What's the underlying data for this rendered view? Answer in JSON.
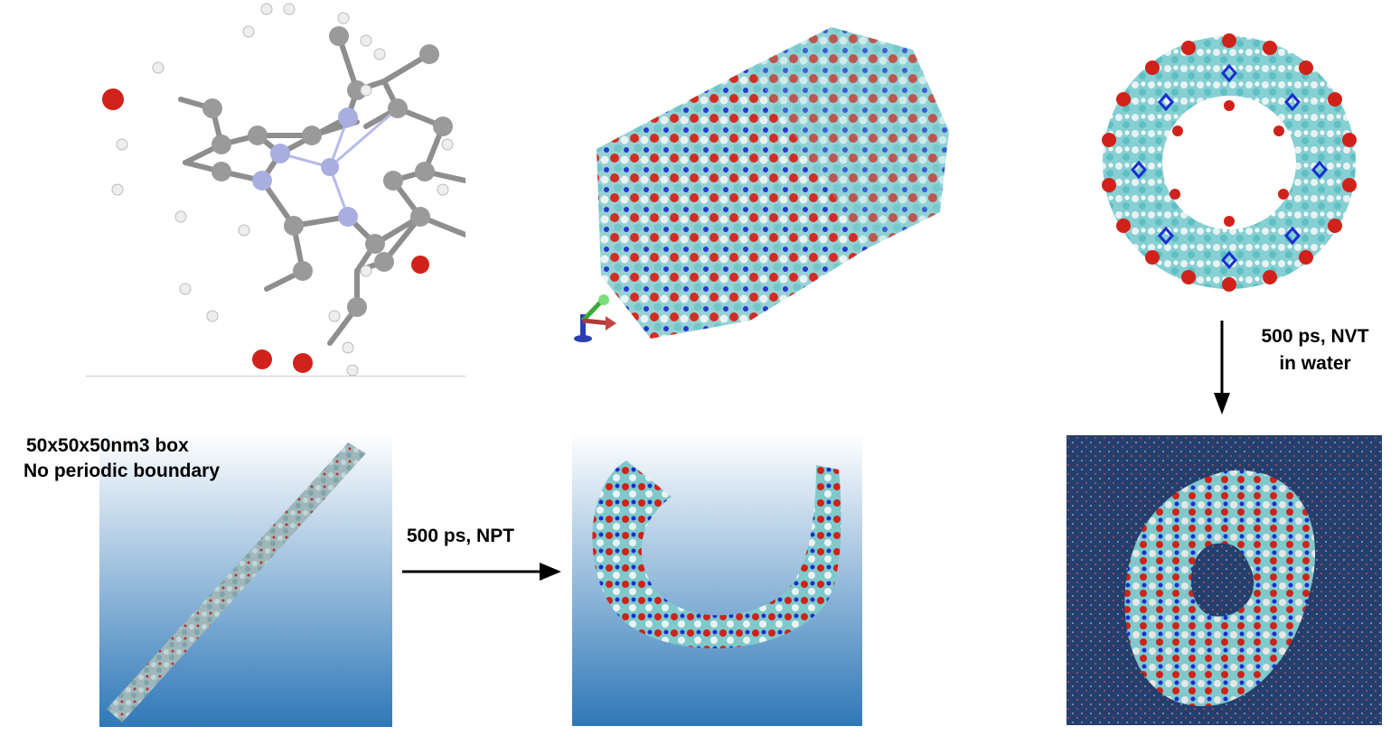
{
  "labels": {
    "box_line1": "50x50x50nm3 box",
    "box_line2": "No periodic boundary",
    "npt": "500 ps, NPT",
    "nvt_line1": "500 ps, NVT",
    "nvt_line2": "in water"
  },
  "colors": {
    "carbon": "#9a9a9a",
    "nitrogen": "#a9aee0",
    "oxygen": "#d0221a",
    "hydrogen": "#f0f0f0",
    "cyan_atom": "#7fd3d6",
    "ring_blue": "#1a2fd0",
    "gradient_top": "#ffffff",
    "gradient_bottom": "#2f78b8",
    "water_bg": "#1f3a66"
  },
  "icons": {
    "axis_triad": "xyz-axes-icon",
    "arrow_right": "arrow-right-icon",
    "arrow_down": "arrow-down-icon"
  }
}
